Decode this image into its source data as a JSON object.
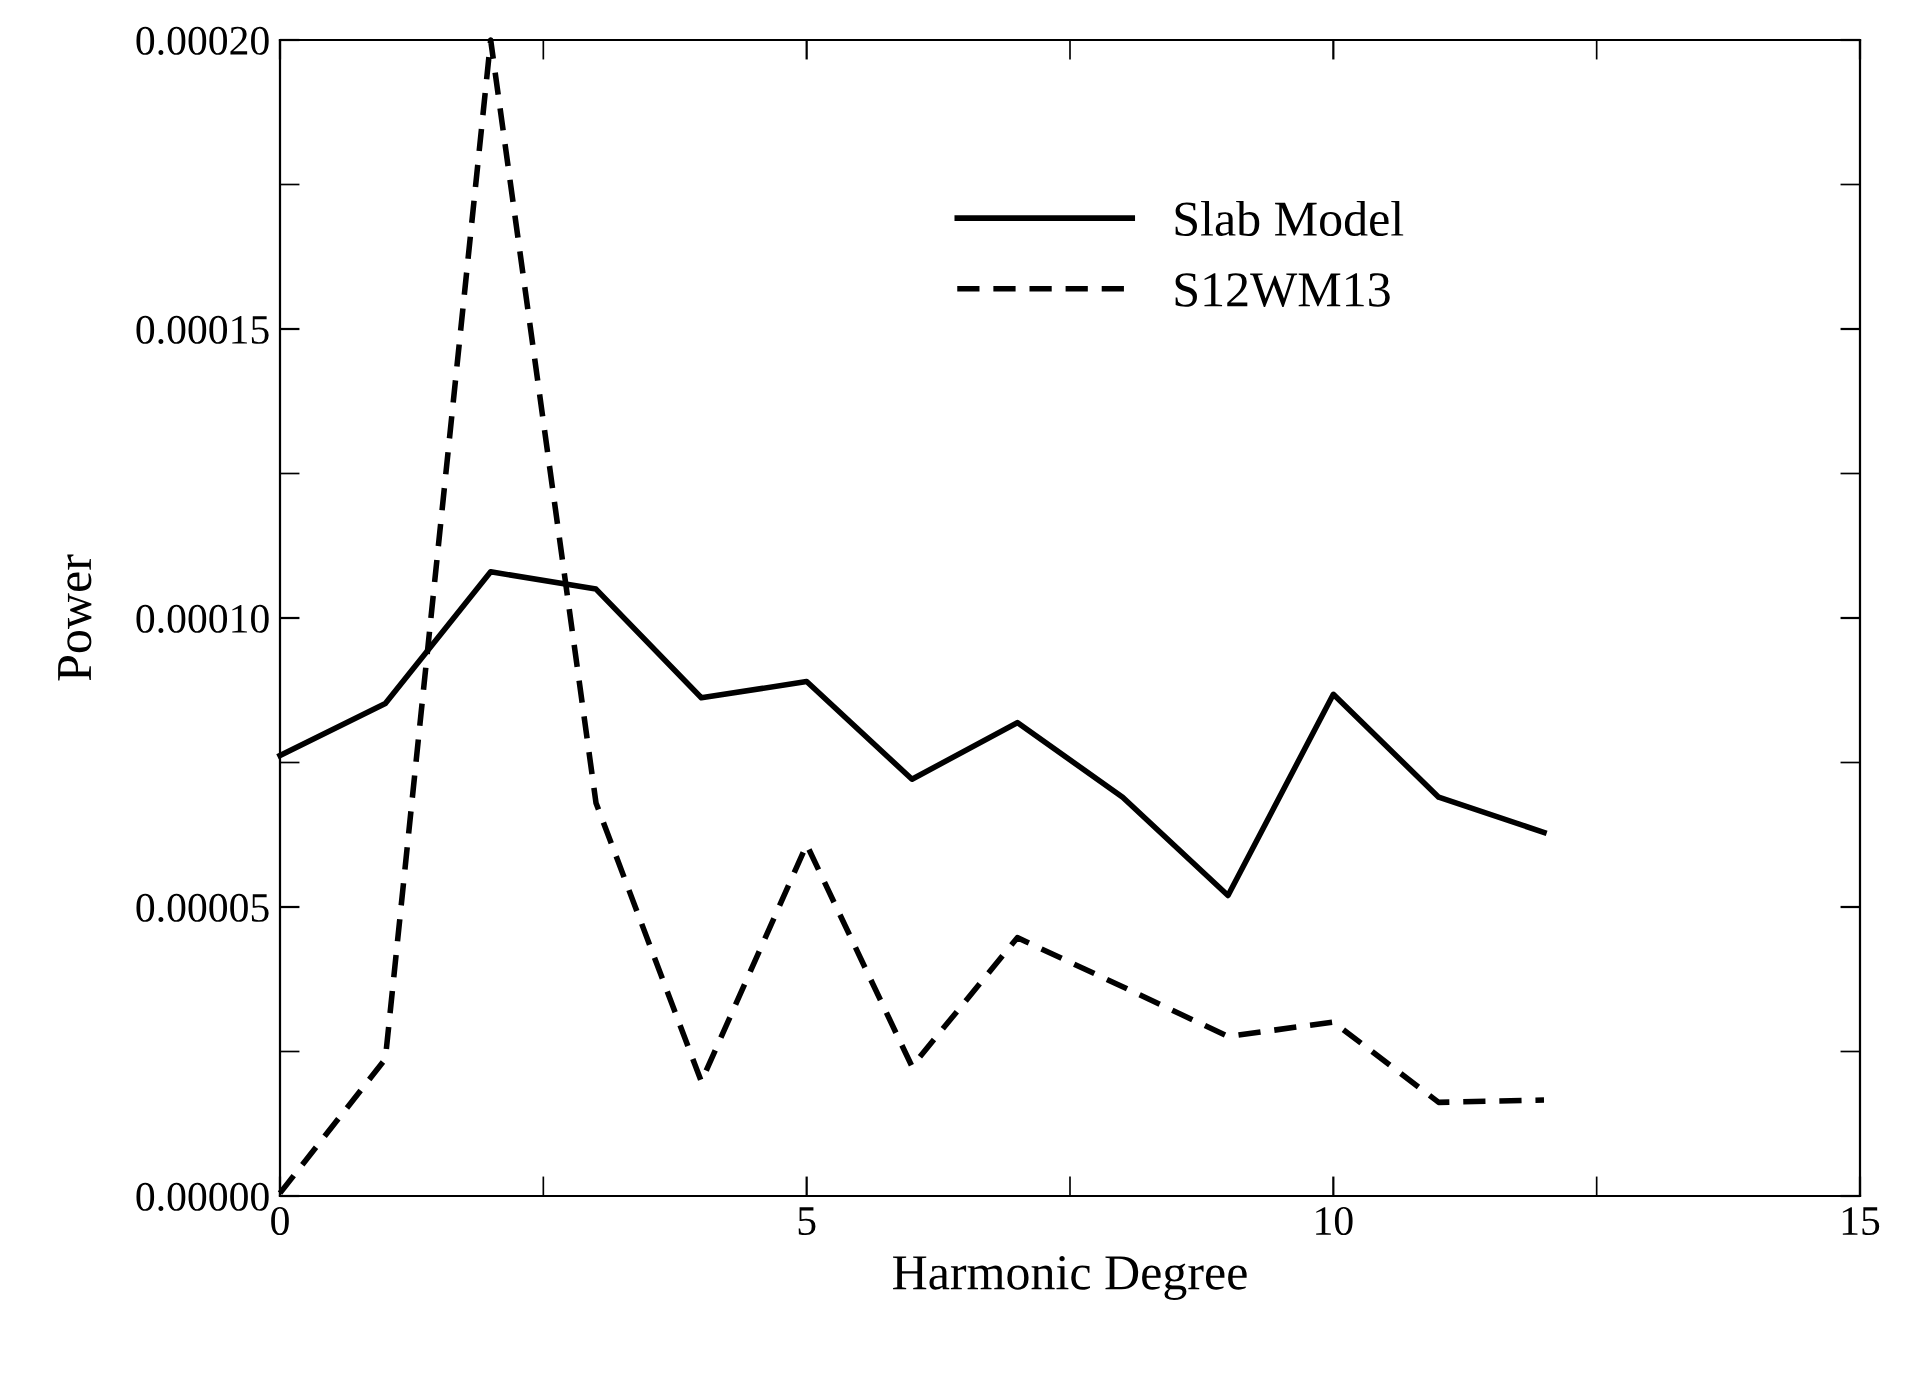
{
  "chart_data": {
    "type": "line",
    "xlabel": "Harmonic Degree",
    "ylabel": "Power",
    "x": [
      0,
      1,
      2,
      3,
      4,
      5,
      6,
      7,
      8,
      9,
      10,
      11,
      12
    ],
    "series": [
      {
        "name": "Slab Model",
        "color": "#000000",
        "line_style": "solid",
        "values": [
          7.62e-05,
          8.52e-05,
          0.000108,
          0.000105,
          8.62e-05,
          8.9e-05,
          7.21e-05,
          8.19e-05,
          6.9e-05,
          5.2e-05,
          8.68e-05,
          6.9e-05,
          6.29e-05
        ]
      },
      {
        "name": "S12WM13",
        "color": "#000000",
        "line_style": "dashed",
        "values": [
          5e-07,
          2.37e-05,
          0.0002,
          6.8e-05,
          1.98e-05,
          6.08e-05,
          2.24e-05,
          4.47e-05,
          3.62e-05,
          2.76e-05,
          3.01e-05,
          1.62e-05,
          1.66e-05
        ]
      }
    ],
    "xlim": [
      0,
      15
    ],
    "xticks": [
      0,
      5,
      10,
      15
    ],
    "ylim": [
      0,
      0.0002
    ],
    "yticks": [
      {
        "value": 0,
        "label": "0.00000"
      },
      {
        "value": 5e-05,
        "label": "0.00005"
      },
      {
        "value": 0.0001,
        "label": "0.00010"
      },
      {
        "value": 0.00015,
        "label": "0.00015"
      },
      {
        "value": 0.0002,
        "label": "0.00020"
      }
    ],
    "grid": false,
    "legend": "top right",
    "marker": "none"
  }
}
